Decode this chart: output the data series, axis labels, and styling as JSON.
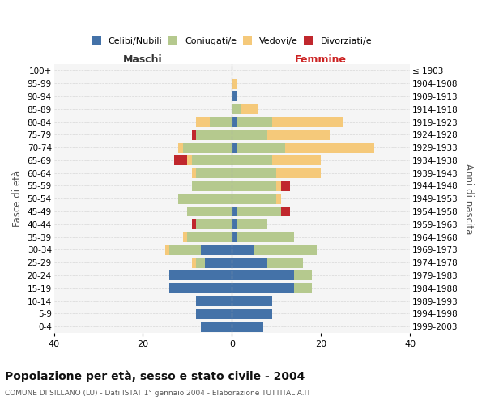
{
  "age_groups": [
    "0-4",
    "5-9",
    "10-14",
    "15-19",
    "20-24",
    "25-29",
    "30-34",
    "35-39",
    "40-44",
    "45-49",
    "50-54",
    "55-59",
    "60-64",
    "65-69",
    "70-74",
    "75-79",
    "80-84",
    "85-89",
    "90-94",
    "95-99",
    "100+"
  ],
  "birth_years": [
    "1999-2003",
    "1994-1998",
    "1989-1993",
    "1984-1988",
    "1979-1983",
    "1974-1978",
    "1969-1973",
    "1964-1968",
    "1959-1963",
    "1954-1958",
    "1949-1953",
    "1944-1948",
    "1939-1943",
    "1934-1938",
    "1929-1933",
    "1924-1928",
    "1919-1923",
    "1914-1918",
    "1909-1913",
    "1904-1908",
    "≤ 1903"
  ],
  "colors": {
    "celibi": "#4472a8",
    "coniugati": "#b5c98e",
    "vedovi": "#f5c97a",
    "divorziati": "#c0272d"
  },
  "maschi": {
    "celibi": [
      7,
      8,
      8,
      14,
      14,
      6,
      7,
      0,
      0,
      0,
      0,
      0,
      0,
      0,
      0,
      0,
      0,
      0,
      0,
      0,
      0
    ],
    "coniugati": [
      0,
      0,
      0,
      0,
      0,
      2,
      7,
      10,
      8,
      10,
      12,
      9,
      8,
      9,
      11,
      8,
      5,
      0,
      0,
      0,
      0
    ],
    "vedovi": [
      0,
      0,
      0,
      0,
      0,
      1,
      1,
      1,
      0,
      0,
      0,
      0,
      1,
      1,
      1,
      0,
      3,
      0,
      0,
      0,
      0
    ],
    "divorziati": [
      0,
      0,
      0,
      0,
      0,
      0,
      0,
      0,
      1,
      0,
      0,
      0,
      0,
      3,
      0,
      1,
      0,
      0,
      0,
      0,
      0
    ]
  },
  "femmine": {
    "celibi": [
      7,
      9,
      9,
      14,
      14,
      8,
      5,
      1,
      1,
      1,
      0,
      0,
      0,
      0,
      1,
      0,
      1,
      0,
      1,
      0,
      0
    ],
    "coniugati": [
      0,
      0,
      0,
      4,
      4,
      8,
      14,
      13,
      7,
      10,
      10,
      10,
      10,
      9,
      11,
      8,
      8,
      2,
      0,
      0,
      0
    ],
    "vedovi": [
      0,
      0,
      0,
      0,
      0,
      0,
      0,
      0,
      0,
      0,
      1,
      1,
      10,
      11,
      20,
      14,
      16,
      4,
      0,
      1,
      0
    ],
    "divorziati": [
      0,
      0,
      0,
      0,
      0,
      0,
      0,
      0,
      0,
      2,
      0,
      2,
      0,
      0,
      0,
      0,
      0,
      0,
      0,
      0,
      0
    ]
  },
  "xlim": 40,
  "title": "Popolazione per età, sesso e stato civile - 2004",
  "subtitle": "COMUNE DI SILLANO (LU) - Dati ISTAT 1° gennaio 2004 - Elaborazione TUTTITALIA.IT",
  "ylabel_left": "Fasce di età",
  "ylabel_right": "Anni di nascita",
  "legend_labels": [
    "Celibi/Nubili",
    "Coniugati/e",
    "Vedovi/e",
    "Divorziati/e"
  ],
  "maschi_label_color": "#333333",
  "femmine_label_color": "#cc2222",
  "background_color": "#f5f5f5"
}
